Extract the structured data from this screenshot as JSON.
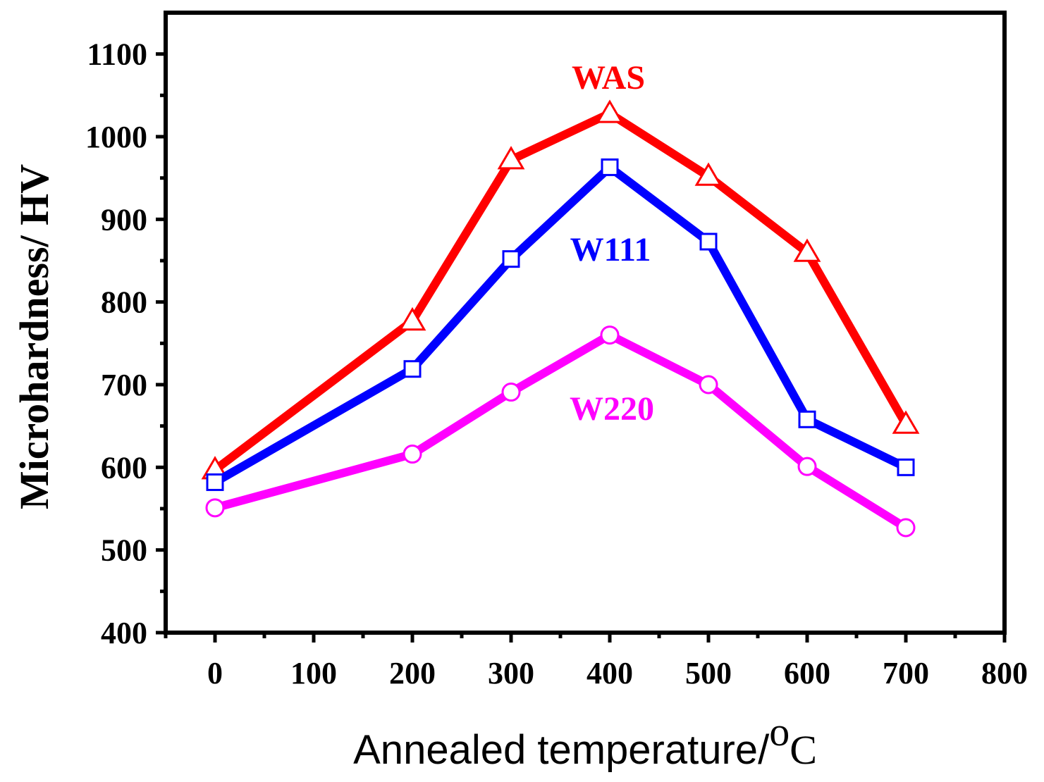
{
  "chart_data": {
    "type": "line",
    "title": "",
    "xlabel": "Annealed temperature/",
    "xlabel_unit_sup": "o",
    "xlabel_unit": "C",
    "ylabel": "Microhardness/ HV",
    "xlim": [
      -50,
      800
    ],
    "ylim": [
      400,
      1150
    ],
    "x_ticks": [
      0,
      100,
      200,
      300,
      400,
      500,
      600,
      700,
      800
    ],
    "x_tick_labels": [
      "0",
      "100",
      "200",
      "300",
      "400",
      "500",
      "600",
      "700",
      "800"
    ],
    "y_ticks": [
      400,
      500,
      600,
      700,
      800,
      900,
      1000,
      1100
    ],
    "y_tick_labels": [
      "400",
      "500",
      "600",
      "700",
      "800",
      "900",
      "1000",
      "1100"
    ],
    "x": [
      0,
      200,
      300,
      400,
      500,
      600,
      700
    ],
    "series": [
      {
        "name": "WAS",
        "label": "WAS",
        "color": "#ff0000",
        "marker": "triangle",
        "values": [
          597,
          777,
          972,
          1028,
          952,
          860,
          652
        ]
      },
      {
        "name": "W111",
        "label": "W111",
        "color": "#0000ff",
        "marker": "square",
        "values": [
          582,
          719,
          852,
          963,
          873,
          658,
          600
        ]
      },
      {
        "name": "W220",
        "label": "W220",
        "color": "#ff00ff",
        "marker": "circle",
        "values": [
          551,
          616,
          691,
          760,
          700,
          601,
          527
        ]
      }
    ],
    "grid": false
  }
}
